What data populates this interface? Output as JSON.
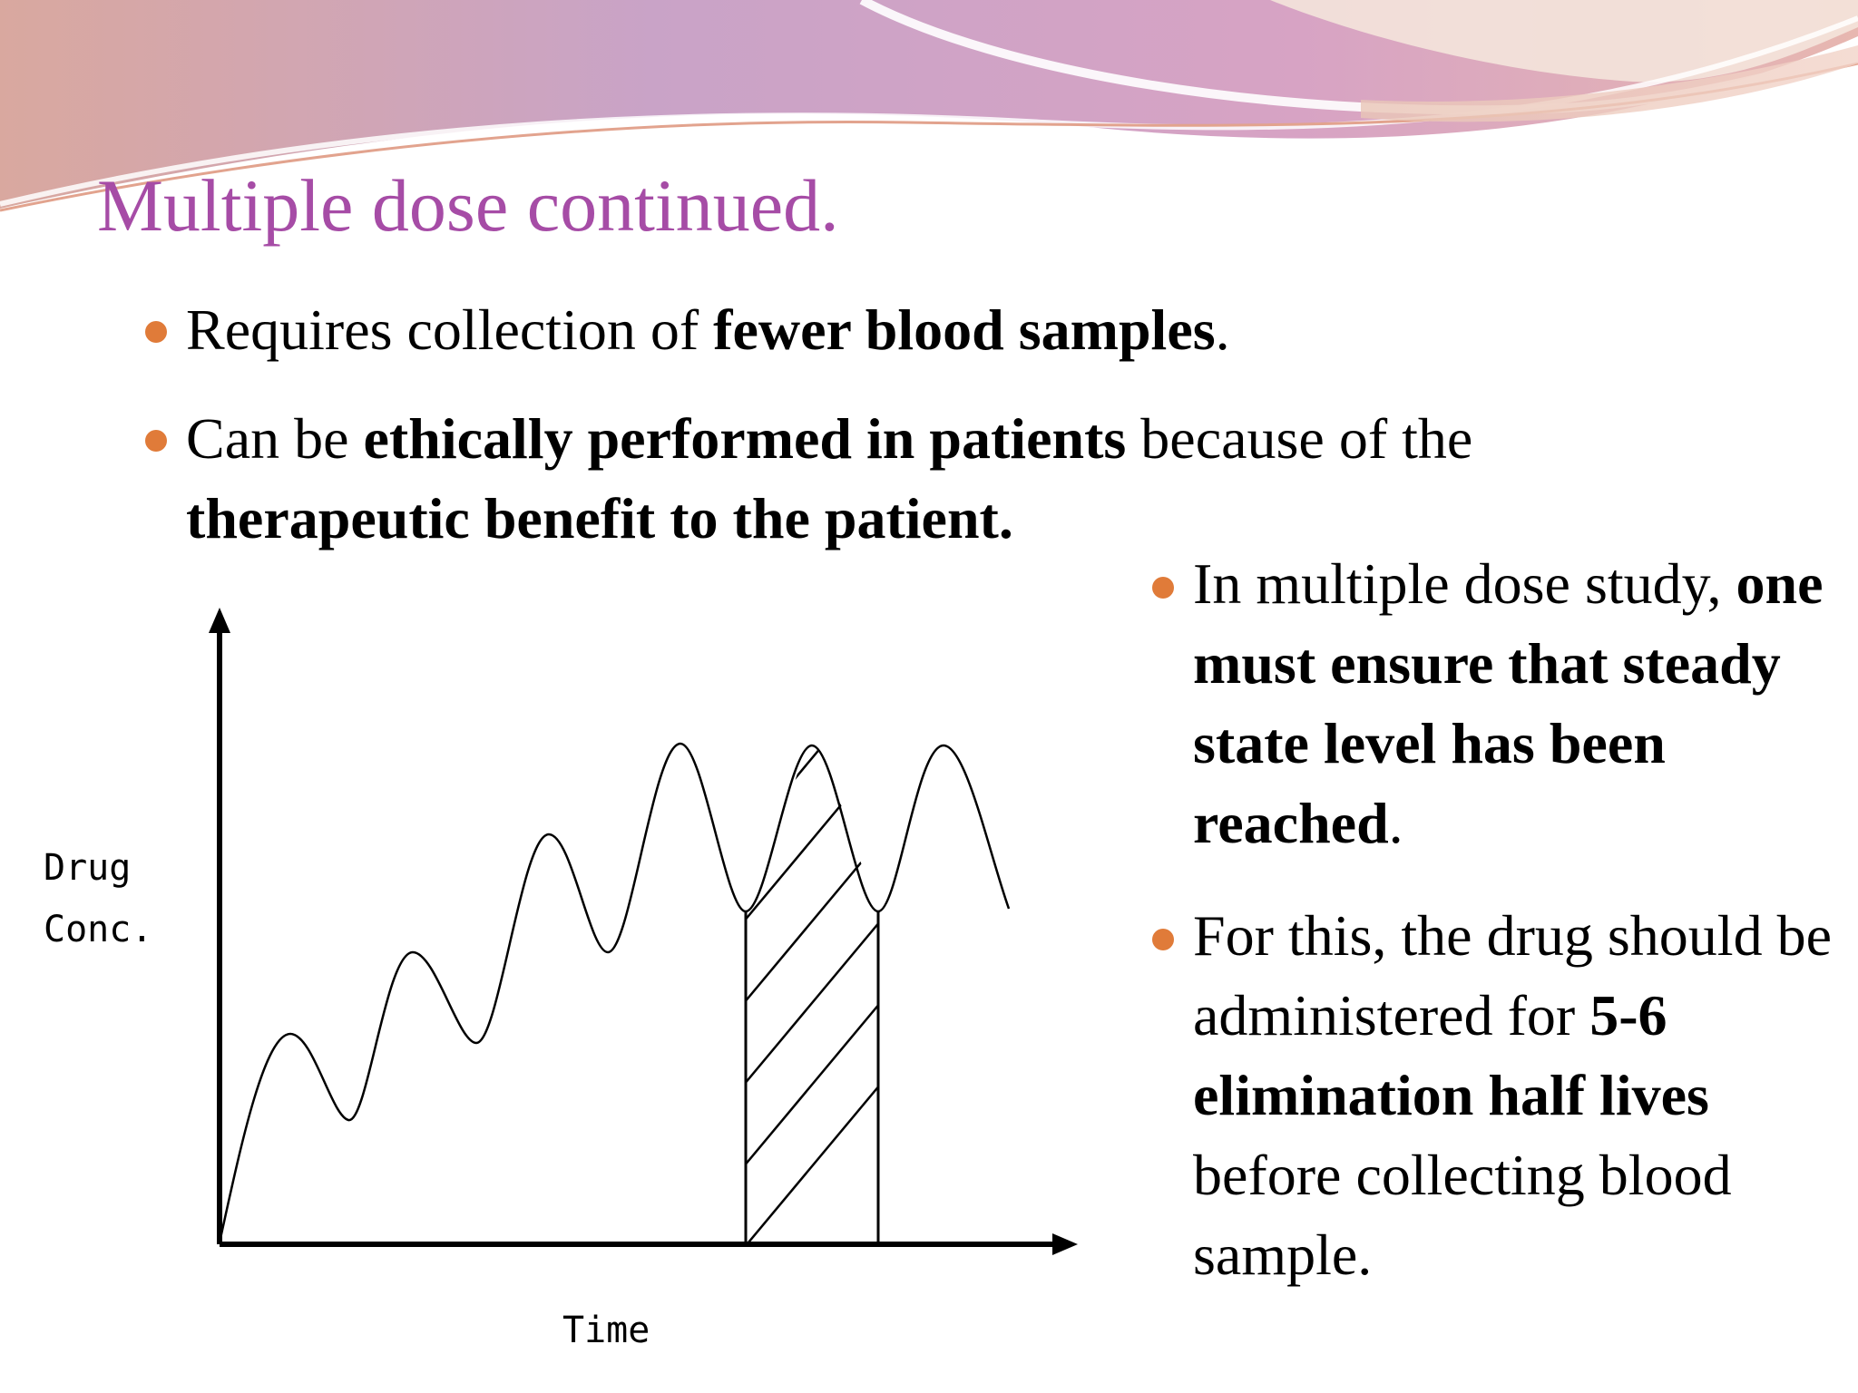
{
  "slide": {
    "title": "Multiple dose continued."
  },
  "bullets": [
    {
      "parts": [
        "Requires collection of ",
        "fewer blood samples",
        "."
      ]
    },
    {
      "parts": [
        "Can be ",
        "ethically performed in patients",
        " because of the ",
        "therapeutic benefit to the patient."
      ]
    },
    {
      "parts": [
        "In multiple dose study, ",
        "one must ensure that steady state level has been reached",
        "."
      ]
    },
    {
      "parts": [
        " For this, the drug should be administered for ",
        "5-6 elimination half lives",
        " before collecting blood sample."
      ]
    }
  ],
  "figure": {
    "ylabel_line1": "Drug",
    "ylabel_line2": "Conc.",
    "xlabel": "Time"
  },
  "colors": {
    "title": "#a64ca6",
    "bullet": "#e07b39"
  }
}
